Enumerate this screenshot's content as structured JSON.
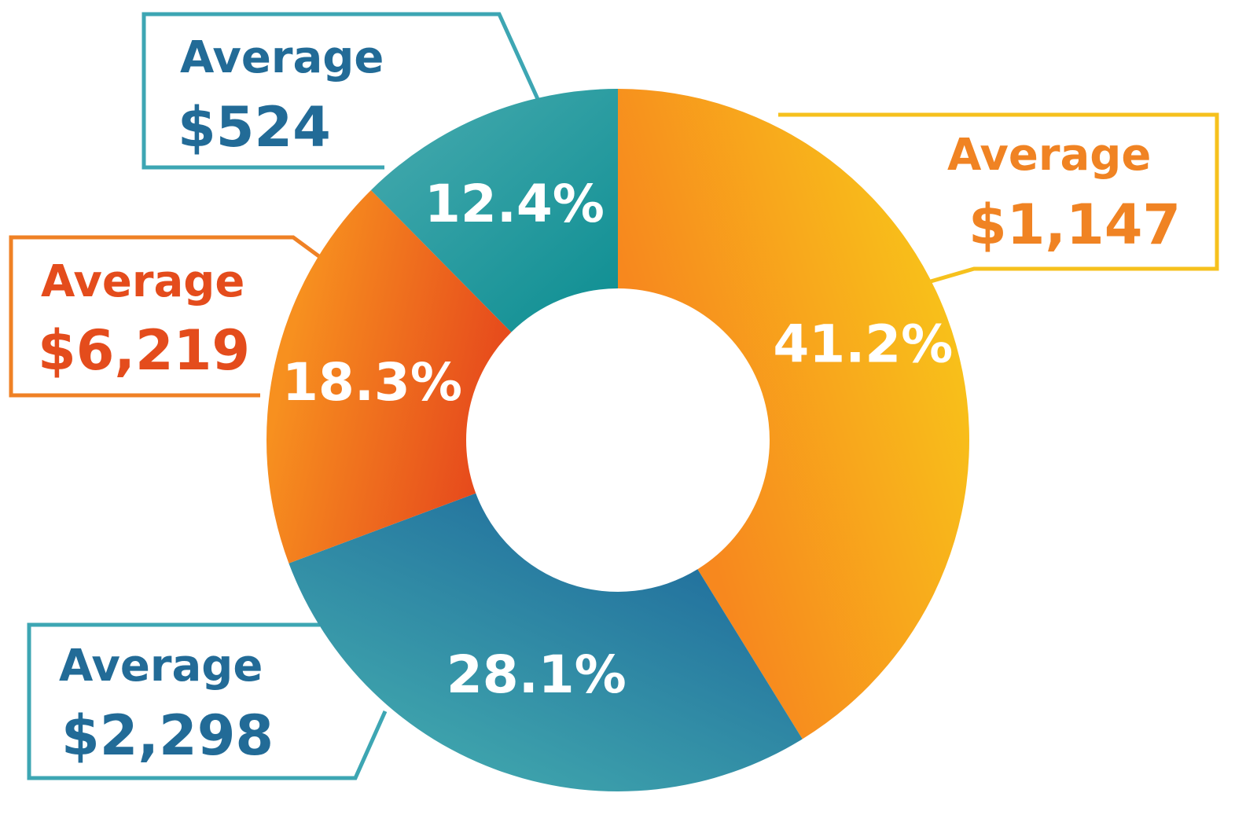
{
  "chart_data": {
    "type": "donut",
    "title": "",
    "slices": [
      {
        "label": "41.2%",
        "value": 41.2,
        "caption": "Average",
        "amount": "$1,147",
        "color_start": "#f7881e",
        "color_end": "#f8c31a"
      },
      {
        "label": "28.1%",
        "value": 28.1,
        "caption": "Average",
        "amount": "$2,298",
        "color_start": "#45b0b0",
        "color_end": "#1f6b9c"
      },
      {
        "label": "18.3%",
        "value": 18.3,
        "caption": "Average",
        "amount": "$6,219",
        "color_start": "#f7901f",
        "color_end": "#e4411c"
      },
      {
        "label": "12.4%",
        "value": 12.4,
        "caption": "Average",
        "amount": "$524",
        "color_start": "#49abb0",
        "color_end": "#0f8f93"
      }
    ]
  },
  "colors": {
    "teal_text": "#226b97",
    "teal_border": "#3da6b3",
    "orange_text": "#f08323",
    "yellow_border": "#f6c11d",
    "red_text": "#e44c1c",
    "orange_border": "#ef8125"
  }
}
